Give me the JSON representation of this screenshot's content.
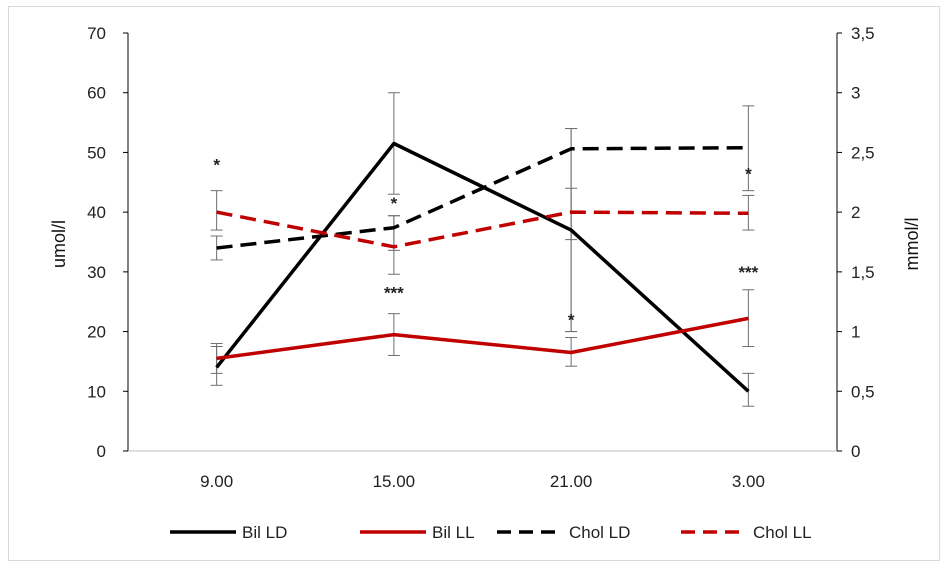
{
  "chart_data": {
    "type": "line",
    "title": "",
    "categories": [
      "9.00",
      "15.00",
      "21.00",
      "3.00"
    ],
    "y_left": {
      "label": "umol/l",
      "min": 0,
      "max": 70,
      "ticks": [
        "0",
        "10",
        "20",
        "30",
        "40",
        "50",
        "60",
        "70"
      ]
    },
    "y_right": {
      "label": "mmol/l",
      "min": 0,
      "max": 3.5,
      "ticks": [
        "0",
        "0,5",
        "1",
        "1,5",
        "2",
        "2,5",
        "3",
        "3,5"
      ]
    },
    "series": [
      {
        "name": "Bil LD",
        "axis": "left",
        "color": "#000000",
        "dash": "solid",
        "values": [
          14,
          51.5,
          37,
          10
        ],
        "err_low": [
          11,
          43,
          20,
          7.5
        ],
        "err_high": [
          17.5,
          60,
          54,
          13
        ]
      },
      {
        "name": "Bil LL",
        "axis": "left",
        "color": "#c00000",
        "dash": "solid",
        "values": [
          15.5,
          19.5,
          16.5,
          22.2
        ],
        "err_low": [
          13,
          16,
          14.2,
          17.5
        ],
        "err_high": [
          18,
          23,
          19,
          27
        ]
      },
      {
        "name": "Chol LD",
        "axis": "right",
        "color": "#000000",
        "dash": "dashed",
        "values": [
          1.7,
          1.87,
          2.53,
          2.54
        ],
        "err_low": [
          1.6,
          1.68,
          1.0,
          2.18
        ],
        "err_high": [
          1.8,
          1.97,
          2.7,
          2.89
        ]
      },
      {
        "name": "Chol LL",
        "axis": "right",
        "color": "#c00000",
        "dash": "dashed",
        "values": [
          2.0,
          1.71,
          2.0,
          1.99
        ],
        "err_low": [
          1.85,
          1.48,
          1.77,
          1.85
        ],
        "err_high": [
          2.18,
          1.97,
          2.2,
          2.14
        ]
      }
    ],
    "annotations": [
      {
        "text": "*",
        "category": 0,
        "axis": "left",
        "value": 47
      },
      {
        "text": "*",
        "category": 1,
        "axis": "left",
        "value": 40.5
      },
      {
        "text": "***",
        "category": 1,
        "axis": "left",
        "value": 25.5
      },
      {
        "text": "*",
        "category": 2,
        "axis": "left",
        "value": 21
      },
      {
        "text": "*",
        "category": 3,
        "axis": "left",
        "value": 45.5
      },
      {
        "text": "***",
        "category": 3,
        "axis": "left",
        "value": 29
      }
    ],
    "legend": "bottom",
    "grid": false
  }
}
